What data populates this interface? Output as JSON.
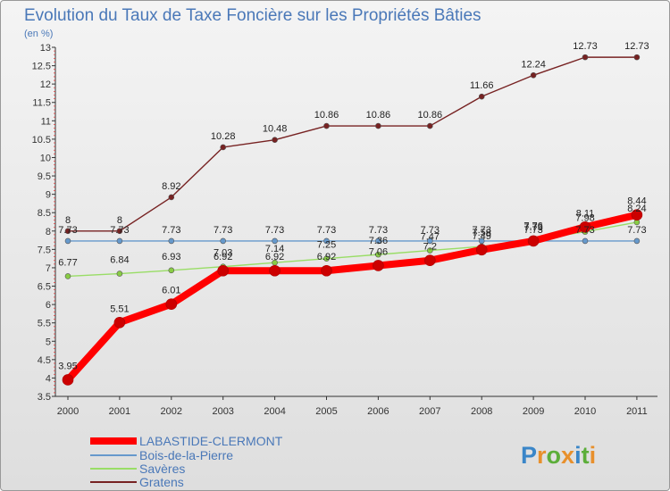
{
  "chart_data": {
    "type": "line",
    "title": "Evolution du Taux de Taxe Foncière sur les Propriétés Bâties",
    "subtitle": "(en %)",
    "x": [
      "2000",
      "2001",
      "2002",
      "2003",
      "2004",
      "2005",
      "2006",
      "2007",
      "2008",
      "2009",
      "2010",
      "2011"
    ],
    "ylim": [
      3.5,
      13
    ],
    "yticks": [
      "3.5",
      "4",
      "4.5",
      "5",
      "5.5",
      "6",
      "6.5",
      "7",
      "7.5",
      "8",
      "8.5",
      "9",
      "9.5",
      "10",
      "10.5",
      "11",
      "11.5",
      "12",
      "12.5",
      "13"
    ],
    "grid": false,
    "series": [
      {
        "name": "LABASTIDE-CLERMONT",
        "color": "#ff0000",
        "values": [
          3.95,
          5.51,
          6.01,
          6.92,
          6.92,
          6.92,
          7.06,
          7.2,
          7.49,
          7.73,
          8.11,
          8.44
        ],
        "labels": [
          "3.95",
          "5.51",
          "6.01",
          "6.92",
          "6.92",
          "6.92",
          "7.06",
          "7.2",
          "7.49",
          "7.73",
          "8.11",
          "8.44"
        ]
      },
      {
        "name": "Bois-de-la-Pierre",
        "color": "#6699cc",
        "values": [
          7.73,
          7.73,
          7.73,
          7.73,
          7.73,
          7.73,
          7.73,
          7.73,
          7.73,
          7.73,
          7.73,
          7.73
        ],
        "labels": [
          "7.73",
          "7.73",
          "7.73",
          "7.73",
          "7.73",
          "7.73",
          "7.73",
          "7.73",
          "7.73",
          "7.73",
          "7.73",
          "7.73"
        ]
      },
      {
        "name": "Savères",
        "color": "#99dd66",
        "values": [
          6.77,
          6.84,
          6.93,
          7.03,
          7.14,
          7.25,
          7.36,
          7.47,
          7.58,
          7.76,
          7.98,
          8.24
        ],
        "labels": [
          "6.77",
          "6.84",
          "6.93",
          "7.03",
          "7.14",
          "7.25",
          "7.36",
          "7.47",
          "7.58",
          "7.76",
          "7.98",
          "8.24"
        ]
      },
      {
        "name": "Gratens",
        "color": "#772222",
        "values": [
          8,
          8,
          8.92,
          10.28,
          10.48,
          10.86,
          10.86,
          10.86,
          11.66,
          12.24,
          12.73,
          12.73
        ],
        "labels": [
          "8",
          "8",
          "8.92",
          "10.28",
          "10.48",
          "10.86",
          "10.86",
          "10.86",
          "11.66",
          "12.24",
          "12.73",
          "12.73"
        ]
      }
    ],
    "legend_position": "bottom-left"
  },
  "brand": {
    "letters": [
      "P",
      "r",
      "o",
      "x",
      "i",
      "t",
      "i"
    ],
    "colors": [
      "#3a86c8",
      "#e8902c",
      "#5cae3a",
      "#e8902c",
      "#3a86c8",
      "#5cae3a",
      "#e8902c"
    ]
  }
}
